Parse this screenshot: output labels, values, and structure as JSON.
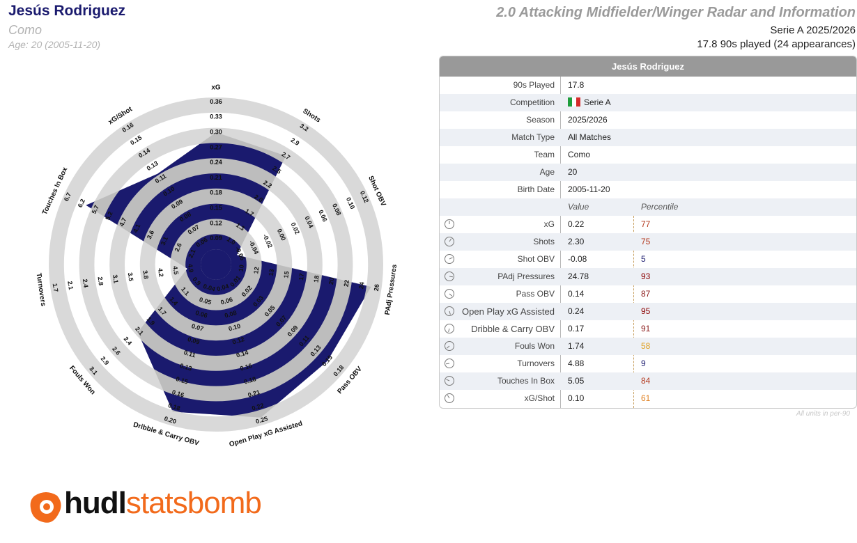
{
  "header": {
    "player_name": "Jesús Rodriguez",
    "team": "Como",
    "age_line": "Age: 20 (2005-11-20)",
    "title": "2.0 Attacking Midfielder/Winger Radar and Information",
    "competition_season": "Serie A 2025/2026",
    "played_line": "17.8 90s played (24 appearances)"
  },
  "table": {
    "title": "Jesús Rodriguez",
    "info_rows": [
      {
        "label": "90s Played",
        "value": "17.8"
      },
      {
        "label": "Competition",
        "value": "Serie A",
        "flag": [
          "#1e9e3c",
          "#ffffff",
          "#d62b2b"
        ]
      },
      {
        "label": "Season",
        "value": "2025/2026"
      },
      {
        "label": "Match Type",
        "value": "All Matches"
      },
      {
        "label": "Team",
        "value": "Como"
      },
      {
        "label": "Age",
        "value": "20"
      },
      {
        "label": "Birth Date",
        "value": "2005-11-20"
      }
    ],
    "value_header": "Value",
    "percentile_header": "Percentile",
    "metric_rows": [
      {
        "label": "xG",
        "value": "0.22",
        "percentile": "77",
        "color": "#b3391e"
      },
      {
        "label": "Shots",
        "value": "2.30",
        "percentile": "75",
        "color": "#b3391e"
      },
      {
        "label": "Shot OBV",
        "value": "-0.08",
        "percentile": "5",
        "color": "#1a1a6e"
      },
      {
        "label": "PAdj Pressures",
        "value": "24.78",
        "percentile": "93",
        "color": "#8b0000"
      },
      {
        "label": "Pass OBV",
        "value": "0.14",
        "percentile": "87",
        "color": "#8b1a1a"
      },
      {
        "label": "Open Play xG Assisted",
        "value": "0.24",
        "percentile": "95",
        "color": "#8b0000"
      },
      {
        "label": "Dribble & Carry OBV",
        "value": "0.17",
        "percentile": "91",
        "color": "#8b1a1a"
      },
      {
        "label": "Fouls Won",
        "value": "1.74",
        "percentile": "58",
        "color": "#e0a020"
      },
      {
        "label": "Turnovers",
        "value": "4.88",
        "percentile": "9",
        "color": "#1a1a6e"
      },
      {
        "label": "Touches In Box",
        "value": "5.05",
        "percentile": "84",
        "color": "#b3391e"
      },
      {
        "label": "xG/Shot",
        "value": "0.10",
        "percentile": "61",
        "color": "#e08020"
      }
    ],
    "footnote": "All units in per-90"
  },
  "chart_data": {
    "type": "radar",
    "colors": {
      "fill": "#1a1a6e",
      "band": "#d9d9d9",
      "polygon_bg": "#bdbdbd"
    },
    "axes": [
      {
        "label": "xG",
        "ticks": [
          "0.09",
          "0.12",
          "0.15",
          "0.18",
          "0.21",
          "0.24",
          "0.27",
          "0.30",
          "0.33",
          "0.36"
        ],
        "value": 0.22,
        "percentile": 77
      },
      {
        "label": "Shots",
        "ticks": [
          "1.0",
          "1.3",
          "1.7",
          "2.0",
          "2.2",
          "2.5",
          "2.7",
          "2.9",
          "3.2"
        ],
        "value": 2.3,
        "percentile": 75
      },
      {
        "label": "Shot OBV",
        "ticks": [
          "-0.06",
          "-0.04",
          "-0.02",
          "0.00",
          "0.02",
          "0.04",
          "0.06",
          "0.08",
          "0.10",
          "0.12"
        ],
        "value": -0.08,
        "percentile": 5
      },
      {
        "label": "PAdj Pressures",
        "ticks": [
          "10",
          "12",
          "13",
          "15",
          "17",
          "18",
          "20",
          "22",
          "24",
          "26"
        ],
        "value": 24.78,
        "percentile": 93
      },
      {
        "label": "Pass OBV",
        "ticks": [
          "0.01",
          "0.02",
          "0.03",
          "0.05",
          "0.07",
          "0.09",
          "0.11",
          "0.13",
          "0.15",
          "0.18"
        ],
        "value": 0.14,
        "percentile": 87
      },
      {
        "label": "Open Play xG Assisted",
        "ticks": [
          "0.04",
          "0.06",
          "0.08",
          "0.10",
          "0.12",
          "0.14",
          "0.16",
          "0.18",
          "0.21",
          "0.22",
          "0.25"
        ],
        "value": 0.24,
        "percentile": 95
      },
      {
        "label": "Dribble & Carry OBV",
        "ticks": [
          "0.04",
          "0.05",
          "0.06",
          "0.07",
          "0.09",
          "0.11",
          "0.13",
          "0.15",
          "0.16",
          "0.18",
          "0.20"
        ],
        "value": 0.17,
        "percentile": 91
      },
      {
        "label": "Fouls Won",
        "ticks": [
          "0.9",
          "1.1",
          "1.4",
          "1.7",
          "1.9",
          "2.1",
          "2.4",
          "2.6",
          "2.9",
          "3.1"
        ],
        "value": 1.74,
        "percentile": 58
      },
      {
        "label": "Turnovers",
        "ticks": [
          "4.9",
          "4.5",
          "4.2",
          "3.8",
          "3.5",
          "3.1",
          "2.8",
          "2.4",
          "2.1",
          "1.7"
        ],
        "value": 4.88,
        "percentile": 9
      },
      {
        "label": "Touches In Box",
        "ticks": [
          "2.1",
          "2.6",
          "3.1",
          "3.6",
          "4.1",
          "4.7",
          "5.2",
          "5.7",
          "6.2",
          "6.7"
        ],
        "value": 5.05,
        "percentile": 84
      },
      {
        "label": "xG/Shot",
        "ticks": [
          "0.06",
          "0.07",
          "0.08",
          "0.09",
          "0.10",
          "0.11",
          "0.13",
          "0.14",
          "0.15",
          "0.16"
        ],
        "value": 0.1,
        "percentile": 61
      }
    ]
  },
  "logo": {
    "part1": "hudl",
    "part2": "statsbomb"
  }
}
